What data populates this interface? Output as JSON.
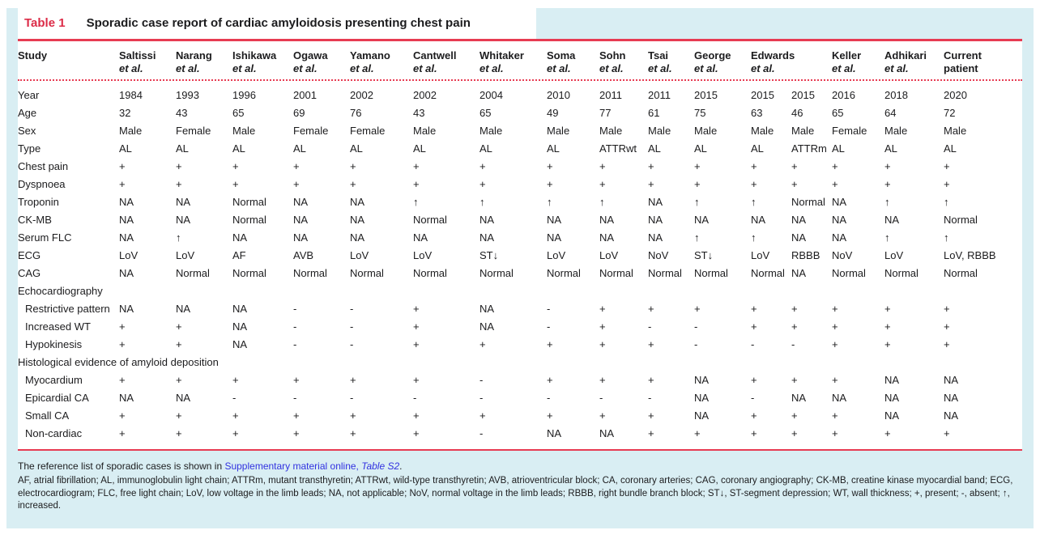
{
  "colors": {
    "card_bg": "#d9eef3",
    "accent_red": "#e73b52",
    "table_label_red": "#dc2b47",
    "text": "#1c1c1e",
    "link_blue": "#3232e0"
  },
  "caption": {
    "label": "Table 1",
    "title": "Sporadic case report of cardiac amyloidosis presenting chest pain"
  },
  "table": {
    "study_header": "Study",
    "columns": [
      {
        "name": "Saltissi",
        "sub": "et al.",
        "sub_italic": true,
        "span": 1
      },
      {
        "name": "Narang",
        "sub": "et al.",
        "sub_italic": true,
        "span": 1
      },
      {
        "name": "Ishikawa",
        "sub": "et al.",
        "sub_italic": true,
        "span": 1
      },
      {
        "name": "Ogawa",
        "sub": "et al.",
        "sub_italic": true,
        "span": 1
      },
      {
        "name": "Yamano",
        "sub": "et al.",
        "sub_italic": true,
        "span": 1
      },
      {
        "name": "Cantwell",
        "sub": "et al.",
        "sub_italic": true,
        "span": 1
      },
      {
        "name": "Whitaker",
        "sub": "et al.",
        "sub_italic": true,
        "span": 1
      },
      {
        "name": "Soma",
        "sub": "et al.",
        "sub_italic": true,
        "span": 1
      },
      {
        "name": "Sohn",
        "sub": "et al.",
        "sub_italic": true,
        "span": 1
      },
      {
        "name": "Tsai",
        "sub": "et al.",
        "sub_italic": true,
        "span": 1
      },
      {
        "name": "George",
        "sub": "et al.",
        "sub_italic": true,
        "span": 1
      },
      {
        "name": "Edwards",
        "sub": "et al.",
        "sub_italic": true,
        "span": 2
      },
      {
        "name": "Keller",
        "sub": "et al.",
        "sub_italic": true,
        "span": 1
      },
      {
        "name": "Adhikari",
        "sub": "et al.",
        "sub_italic": true,
        "span": 1
      },
      {
        "name": "Current",
        "sub": "patient",
        "sub_italic": false,
        "span": 1
      }
    ],
    "rows": [
      {
        "type": "data",
        "label": "Year",
        "indent": 0,
        "values": [
          "1984",
          "1993",
          "1996",
          "2001",
          "2002",
          "2002",
          "2004",
          "2010",
          "2011",
          "2011",
          "2015",
          "2015",
          "2015",
          "2016",
          "2018",
          "2020"
        ]
      },
      {
        "type": "data",
        "label": "Age",
        "indent": 0,
        "values": [
          "32",
          "43",
          "65",
          "69",
          "76",
          "43",
          "65",
          "49",
          "77",
          "61",
          "75",
          "63",
          "46",
          "65",
          "64",
          "72"
        ]
      },
      {
        "type": "data",
        "label": "Sex",
        "indent": 0,
        "values": [
          "Male",
          "Female",
          "Male",
          "Female",
          "Female",
          "Male",
          "Male",
          "Male",
          "Male",
          "Male",
          "Male",
          "Male",
          "Male",
          "Female",
          "Male",
          "Male"
        ]
      },
      {
        "type": "data",
        "label": "Type",
        "indent": 0,
        "values": [
          "AL",
          "AL",
          "AL",
          "AL",
          "AL",
          "AL",
          "AL",
          "AL",
          "ATTRwt",
          "AL",
          "AL",
          "AL",
          "ATTRm",
          "AL",
          "AL",
          "AL"
        ]
      },
      {
        "type": "data",
        "label": "Chest pain",
        "indent": 0,
        "values": [
          "+",
          "+",
          "+",
          "+",
          "+",
          "+",
          "+",
          "+",
          "+",
          "+",
          "+",
          "+",
          "+",
          "+",
          "+",
          "+"
        ]
      },
      {
        "type": "data",
        "label": "Dyspnoea",
        "indent": 0,
        "values": [
          "+",
          "+",
          "+",
          "+",
          "+",
          "+",
          "+",
          "+",
          "+",
          "+",
          "+",
          "+",
          "+",
          "+",
          "+",
          "+"
        ]
      },
      {
        "type": "data",
        "label": "Troponin",
        "indent": 0,
        "values": [
          "NA",
          "NA",
          "Normal",
          "NA",
          "NA",
          "↑",
          "↑",
          "↑",
          "↑",
          "NA",
          "↑",
          "↑",
          "Normal",
          "NA",
          "↑",
          "↑"
        ]
      },
      {
        "type": "data",
        "label": "CK-MB",
        "indent": 0,
        "values": [
          "NA",
          "NA",
          "Normal",
          "NA",
          "NA",
          "Normal",
          "NA",
          "NA",
          "NA",
          "NA",
          "NA",
          "NA",
          "NA",
          "NA",
          "NA",
          "Normal"
        ]
      },
      {
        "type": "data",
        "label": "Serum FLC",
        "indent": 0,
        "values": [
          "NA",
          "↑",
          "NA",
          "NA",
          "NA",
          "NA",
          "NA",
          "NA",
          "NA",
          "NA",
          "↑",
          "↑",
          "NA",
          "NA",
          "↑",
          "↑"
        ]
      },
      {
        "type": "data",
        "label": "ECG",
        "indent": 0,
        "values": [
          "LoV",
          "LoV",
          "AF",
          "AVB",
          "LoV",
          "LoV",
          "ST↓",
          "LoV",
          "LoV",
          "NoV",
          "ST↓",
          "LoV",
          "RBBB",
          "NoV",
          "LoV",
          "LoV, RBBB"
        ]
      },
      {
        "type": "data",
        "label": "CAG",
        "indent": 0,
        "values": [
          "NA",
          "Normal",
          "Normal",
          "Normal",
          "Normal",
          "Normal",
          "Normal",
          "Normal",
          "Normal",
          "Normal",
          "Normal",
          "Normal",
          "NA",
          "Normal",
          "Normal",
          "Normal"
        ]
      },
      {
        "type": "section",
        "label": "Echocardiography"
      },
      {
        "type": "data",
        "label": "Restrictive pattern",
        "indent": 1,
        "values": [
          "NA",
          "NA",
          "NA",
          "-",
          "-",
          "+",
          "NA",
          "-",
          "+",
          "+",
          "+",
          "+",
          "+",
          "+",
          "+",
          "+"
        ]
      },
      {
        "type": "data",
        "label": "Increased WT",
        "indent": 1,
        "values": [
          "+",
          "+",
          "NA",
          "-",
          "-",
          "+",
          "NA",
          "-",
          "+",
          "-",
          "-",
          "+",
          "+",
          "+",
          "+",
          "+"
        ]
      },
      {
        "type": "data",
        "label": "Hypokinesis",
        "indent": 1,
        "values": [
          "+",
          "+",
          "NA",
          "-",
          "-",
          "+",
          "+",
          "+",
          "+",
          "+",
          "-",
          "-",
          "-",
          "+",
          "+",
          "+"
        ]
      },
      {
        "type": "section",
        "label": "Histological evidence of amyloid deposition"
      },
      {
        "type": "data",
        "label": "Myocardium",
        "indent": 1,
        "values": [
          "+",
          "+",
          "+",
          "+",
          "+",
          "+",
          "-",
          "+",
          "+",
          "+",
          "NA",
          "+",
          "+",
          "+",
          "NA",
          "NA"
        ]
      },
      {
        "type": "data",
        "label": "Epicardial CA",
        "indent": 1,
        "values": [
          "NA",
          "NA",
          "-",
          "-",
          "-",
          "-",
          "-",
          "-",
          "-",
          "-",
          "NA",
          "-",
          "NA",
          "NA",
          "NA",
          "NA"
        ]
      },
      {
        "type": "data",
        "label": "Small CA",
        "indent": 1,
        "values": [
          "+",
          "+",
          "+",
          "+",
          "+",
          "+",
          "+",
          "+",
          "+",
          "+",
          "NA",
          "+",
          "+",
          "+",
          "NA",
          "NA"
        ]
      },
      {
        "type": "data",
        "label": "Non-cardiac",
        "indent": 1,
        "values": [
          "+",
          "+",
          "+",
          "+",
          "+",
          "+",
          "-",
          "NA",
          "NA",
          "+",
          "+",
          "+",
          "+",
          "+",
          "+",
          "+"
        ]
      }
    ]
  },
  "footnote": {
    "ref_prefix": "The reference list of sporadic cases is shown in ",
    "ref_link": "Supplementary material online, ",
    "ref_link_italic": "Table S2",
    "ref_suffix": ".",
    "abbreviations": "AF, atrial fibrillation; AL, immunoglobulin light chain; ATTRm, mutant transthyretin; ATTRwt, wild-type transthyretin; AVB, atrioventricular block; CA, coronary arteries; CAG, coronary angiography; CK-MB, creatine kinase myocardial band; ECG, electrocardiogram; FLC, free light chain; LoV, low voltage in the limb leads; NA, not applicable; NoV, normal voltage in the limb leads; RBBB, right bundle branch block; ST↓, ST-segment depression; WT, wall thickness; +, present; -, absent; ↑, increased."
  }
}
